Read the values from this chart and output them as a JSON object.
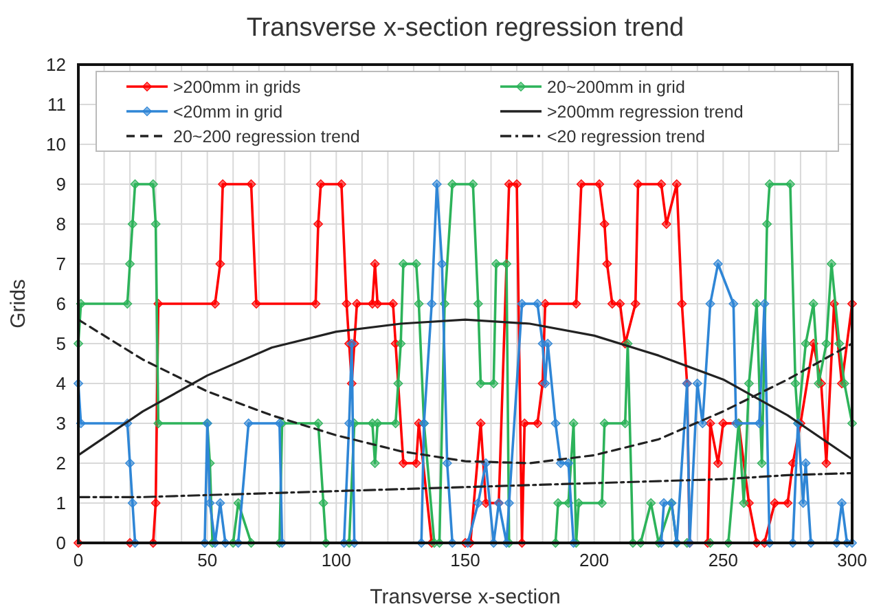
{
  "chart_data": {
    "type": "line",
    "title": "Transverse x-section regression trend",
    "xlabel": "Transverse x-section",
    "ylabel": "Grids",
    "xlim": [
      0,
      300
    ],
    "ylim": [
      0,
      12
    ],
    "xticks": [
      0,
      {
        "value": 10,
        "label": null
      },
      {
        "value": 20,
        "label": null
      },
      {
        "value": 30,
        "label": null
      },
      {
        "value": 40,
        "label": null
      },
      50,
      {
        "value": 60,
        "label": null
      },
      {
        "value": 70,
        "label": null
      },
      {
        "value": 80,
        "label": null
      },
      {
        "value": 90,
        "label": null
      },
      100,
      {
        "value": 110,
        "label": null
      },
      {
        "value": 120,
        "label": null
      },
      {
        "value": 130,
        "label": null
      },
      {
        "value": 140,
        "label": null
      },
      150,
      {
        "value": 160,
        "label": null
      },
      {
        "value": 170,
        "label": null
      },
      {
        "value": 180,
        "label": null
      },
      {
        "value": 190,
        "label": null
      },
      200,
      {
        "value": 210,
        "label": null
      },
      {
        "value": 220,
        "label": null
      },
      {
        "value": 230,
        "label": null
      },
      {
        "value": 240,
        "label": null
      },
      250,
      {
        "value": 260,
        "label": null
      },
      {
        "value": 270,
        "label": null
      },
      {
        "value": 280,
        "label": null
      },
      {
        "value": 290,
        "label": null
      },
      300
    ],
    "yticks": [
      0,
      1,
      2,
      3,
      4,
      5,
      6,
      7,
      8,
      9,
      10,
      11,
      12
    ],
    "grid": true,
    "legend": "top",
    "marker": "diamond",
    "line_style": "solid",
    "series": [
      {
        "name": ">200mm in grids",
        "color": "#ff0000",
        "x": [
          0,
          20,
          29,
          30,
          31,
          53,
          55,
          56,
          67,
          69,
          92,
          93,
          94,
          102,
          104,
          105,
          106,
          107,
          108,
          114,
          115,
          116,
          122,
          123,
          126,
          131,
          132,
          137,
          150,
          152,
          156,
          158,
          163,
          167,
          170,
          172,
          173,
          178,
          180,
          181,
          193,
          195,
          202,
          204,
          205,
          207,
          210,
          212,
          216,
          217,
          226,
          228,
          232,
          234,
          236,
          237,
          244,
          245,
          248,
          250,
          256,
          260,
          263,
          266,
          270,
          275,
          277,
          280,
          285,
          288,
          290,
          293,
          296,
          300
        ],
        "values": [
          0,
          0,
          0,
          1,
          6,
          6,
          7,
          9,
          9,
          6,
          6,
          8,
          9,
          9,
          6,
          5,
          4,
          5,
          6,
          6,
          7,
          6,
          6,
          5,
          2,
          2,
          3,
          0,
          0,
          0,
          3,
          1,
          1,
          9,
          9,
          0,
          3,
          3,
          4,
          6,
          6,
          9,
          9,
          8,
          7,
          6,
          6,
          5,
          6,
          9,
          9,
          8,
          9,
          6,
          4,
          0,
          0,
          3,
          2,
          3,
          3,
          1,
          0,
          0,
          1,
          1,
          2,
          3,
          5,
          4,
          2,
          6,
          4,
          6
        ]
      },
      {
        "name": "20~200mm  in grid",
        "color": "#2db35a",
        "x": [
          0,
          1,
          19,
          20,
          21,
          22,
          29,
          30,
          31,
          50,
          51,
          52,
          60,
          62,
          67,
          78,
          79,
          93,
          95,
          96,
          105,
          107,
          114,
          115,
          116,
          123,
          124,
          125,
          126,
          131,
          132,
          134,
          138,
          140,
          142,
          145,
          153,
          155,
          156,
          161,
          162,
          166,
          167,
          185,
          186,
          190,
          192,
          193,
          194,
          203,
          204,
          212,
          213,
          215,
          218,
          222,
          225,
          230,
          232,
          236,
          245,
          252,
          256,
          258,
          260,
          263,
          265,
          267,
          268,
          276,
          278,
          279,
          282,
          285,
          287,
          290,
          292,
          295,
          297,
          300
        ],
        "values": [
          5,
          6,
          6,
          7,
          8,
          9,
          9,
          8,
          3,
          3,
          2,
          0,
          0,
          1,
          0,
          0,
          3,
          3,
          1,
          0,
          0,
          3,
          3,
          2,
          3,
          3,
          4,
          5,
          7,
          7,
          6,
          3,
          0,
          0,
          6,
          9,
          9,
          6,
          4,
          4,
          7,
          7,
          0,
          0,
          1,
          1,
          3,
          0,
          1,
          1,
          3,
          3,
          5,
          0,
          0,
          1,
          0,
          1,
          0,
          0,
          0,
          0,
          3,
          1,
          4,
          6,
          2,
          8,
          9,
          9,
          4,
          3,
          5,
          6,
          4,
          5,
          7,
          5,
          4,
          3
        ]
      },
      {
        "name": "<20mm  in grid",
        "color": "#2f86d6",
        "x": [
          0,
          1,
          19,
          20,
          21,
          22,
          49,
          50,
          51,
          53,
          55,
          57,
          62,
          66,
          78,
          79,
          103,
          105,
          106,
          107,
          133,
          134,
          137,
          139,
          141,
          143,
          145,
          151,
          155,
          158,
          161,
          163,
          166,
          167,
          172,
          178,
          180,
          181,
          182,
          185,
          187,
          190,
          192,
          226,
          227,
          230,
          232,
          236,
          237,
          240,
          242,
          245,
          248,
          254,
          255,
          264,
          266,
          268,
          277,
          279,
          281,
          282,
          284,
          294,
          296,
          298,
          300
        ],
        "values": [
          4,
          3,
          3,
          2,
          1,
          0,
          0,
          3,
          1,
          0,
          1,
          0,
          0,
          3,
          3,
          0,
          0,
          3,
          5,
          0,
          0,
          3,
          6,
          9,
          7,
          2,
          0,
          0,
          1,
          2,
          0,
          1,
          0,
          1,
          6,
          6,
          5,
          4,
          5,
          3,
          2,
          2,
          0,
          0,
          1,
          1,
          0,
          4,
          0,
          4,
          3,
          6,
          7,
          6,
          3,
          3,
          6,
          0,
          0,
          3,
          1,
          2,
          0,
          0,
          1,
          0,
          0
        ]
      },
      {
        "name": ">200mm regression trend",
        "color": "#222222",
        "marker": "none",
        "line_style": "solid",
        "x": [
          0,
          25,
          50,
          75,
          100,
          125,
          150,
          175,
          200,
          225,
          250,
          275,
          300
        ],
        "values": [
          2.2,
          3.3,
          4.2,
          4.9,
          5.3,
          5.5,
          5.6,
          5.5,
          5.2,
          4.7,
          4.1,
          3.2,
          2.1
        ]
      },
      {
        "name": "20~200 regression trend",
        "color": "#222222",
        "marker": "none",
        "line_style": "dashed",
        "x": [
          0,
          25,
          50,
          75,
          100,
          125,
          150,
          175,
          200,
          225,
          250,
          275,
          300
        ],
        "values": [
          5.6,
          4.6,
          3.8,
          3.2,
          2.7,
          2.3,
          2.05,
          2.0,
          2.2,
          2.6,
          3.3,
          4.1,
          5.0
        ]
      },
      {
        "name": "<20 regression trend",
        "color": "#222222",
        "marker": "none",
        "line_style": "dashdot",
        "x": [
          0,
          25,
          50,
          75,
          100,
          125,
          150,
          175,
          200,
          225,
          250,
          275,
          300
        ],
        "values": [
          1.15,
          1.15,
          1.2,
          1.25,
          1.3,
          1.35,
          1.4,
          1.45,
          1.5,
          1.55,
          1.6,
          1.7,
          1.75
        ]
      }
    ]
  }
}
